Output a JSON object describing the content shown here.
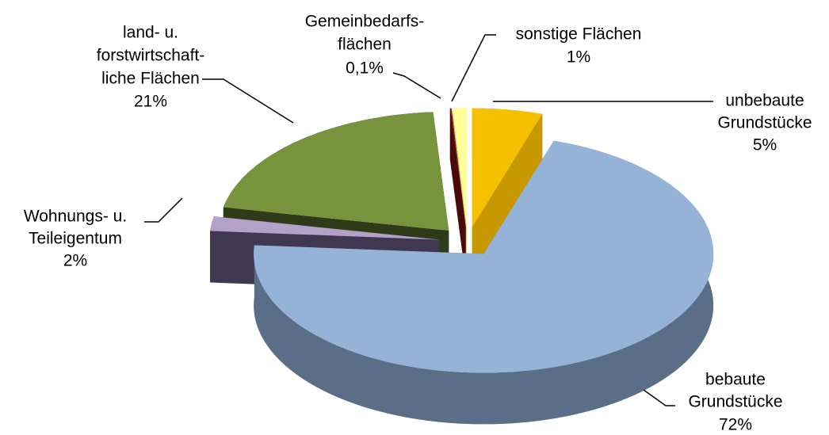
{
  "chart_data": {
    "type": "pie3d",
    "categories": [
      [
        "unbebaute",
        "Grundstücke"
      ],
      [
        "bebaute",
        "Grundstücke"
      ],
      [
        "Wohnungs- u.",
        "Teileigentum"
      ],
      [
        "land- u.",
        "forstwirtschaft-",
        "liche Flächen"
      ],
      [
        "Gemeinbedarfs-",
        "flächen"
      ],
      [
        "sonstige Flächen"
      ]
    ],
    "values": [
      5,
      72,
      2,
      21,
      0.1,
      1
    ],
    "value_labels": [
      "5%",
      "72%",
      "2%",
      "21%",
      "0,1%",
      "1%"
    ],
    "colors": [
      "#f5c000",
      "#95b3d7",
      "#b3a2c7",
      "#77933c",
      "#8b1a1a",
      "#ffff99"
    ],
    "side_colors": [
      "#c89800",
      "#5a6e88",
      "#403850",
      "#2e3a18",
      "#4a0a0a",
      "#c8c870"
    ]
  }
}
